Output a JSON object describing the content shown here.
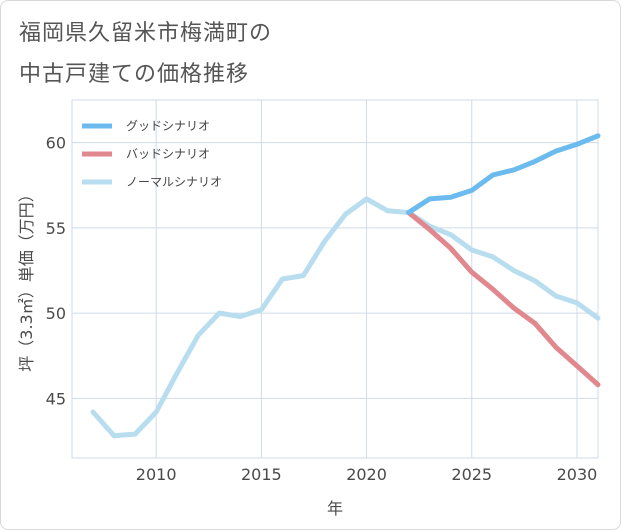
{
  "title_line1": "福岡県久留米市梅満町の",
  "title_line2": "中古戸建ての価格推移",
  "chart_data": {
    "type": "line",
    "xlabel": "年",
    "ylabel": "坪（3.3㎡）単価（万円）",
    "xlim": [
      2006,
      2031
    ],
    "ylim": [
      41.5,
      62.5
    ],
    "xticks": [
      2010,
      2015,
      2020,
      2025,
      2030
    ],
    "yticks": [
      45,
      50,
      55,
      60
    ],
    "grid": true,
    "legend_position": "top-left",
    "series": [
      {
        "name": "グッドシナリオ",
        "color": "#6cbbee",
        "x": [
          2022,
          2023,
          2024,
          2025,
          2026,
          2027,
          2028,
          2029,
          2030,
          2031
        ],
        "y": [
          55.9,
          56.7,
          56.8,
          57.2,
          58.1,
          58.4,
          58.9,
          59.5,
          59.9,
          60.4
        ]
      },
      {
        "name": "バッドシナリオ",
        "color": "#e0888e",
        "x": [
          2022,
          2023,
          2024,
          2025,
          2026,
          2027,
          2028,
          2029,
          2030,
          2031
        ],
        "y": [
          55.9,
          54.9,
          53.8,
          52.4,
          51.4,
          50.3,
          49.4,
          48.0,
          46.9,
          45.8
        ]
      },
      {
        "name": "ノーマルシナリオ",
        "color": "#b8ddef",
        "x": [
          2007,
          2008,
          2009,
          2010,
          2011,
          2012,
          2013,
          2014,
          2015,
          2016,
          2017,
          2018,
          2019,
          2020,
          2021,
          2022,
          2023,
          2024,
          2025,
          2026,
          2027,
          2028,
          2029,
          2030,
          2031
        ],
        "y": [
          44.2,
          42.8,
          42.9,
          44.2,
          46.5,
          48.7,
          50.0,
          49.8,
          50.2,
          52.0,
          52.2,
          54.2,
          55.8,
          56.7,
          56.0,
          55.9,
          55.1,
          54.6,
          53.7,
          53.3,
          52.5,
          51.9,
          51.0,
          50.6,
          49.7
        ]
      }
    ]
  }
}
